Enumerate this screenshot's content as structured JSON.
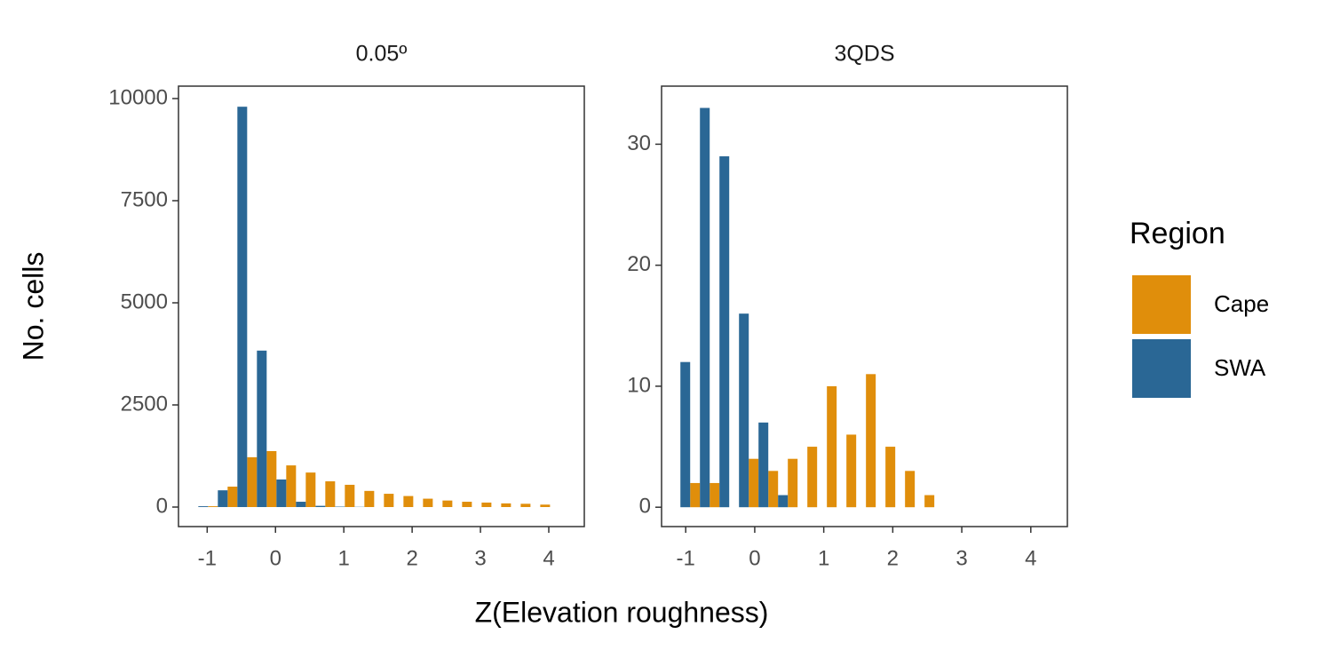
{
  "chart_data": [
    {
      "type": "histogram",
      "title": "0.05º",
      "xlabel": "Z(Elevation roughness)",
      "ylabel": "No. cells",
      "legend_title": "Region",
      "bins": [
        -1.13,
        -0.844,
        -0.558,
        -0.272,
        0.014,
        0.3,
        0.586,
        0.872,
        1.158,
        1.444,
        1.73,
        2.016,
        2.302,
        2.588,
        2.874,
        3.16,
        3.446,
        3.732,
        4.018
      ],
      "series": [
        {
          "name": "Cape",
          "color": "#e08e0b",
          "values": [
            20,
            500,
            1220,
            1370,
            1020,
            845,
            630,
            545,
            395,
            325,
            270,
            205,
            160,
            130,
            110,
            90,
            80,
            60
          ]
        },
        {
          "name": "SWA",
          "color": "#2a6795",
          "values": [
            20,
            410,
            9800,
            3830,
            675,
            130,
            30,
            10,
            5,
            0,
            0,
            0,
            0,
            0,
            0,
            0,
            0,
            0
          ]
        }
      ],
      "xlim": [
        -1.42,
        4.52
      ],
      "xticks": [
        -1,
        0,
        1,
        2,
        3,
        4
      ],
      "ylim": [
        -478,
        10304
      ],
      "yticks": [
        0,
        2500,
        5000,
        7500,
        10000
      ],
      "grid": false
    },
    {
      "type": "histogram",
      "title": "3QDS",
      "bins": [
        -1.077,
        -0.794,
        -0.511,
        -0.228,
        0.055,
        0.338,
        0.621,
        0.904,
        1.187,
        1.47,
        1.753,
        2.036,
        2.319,
        2.602
      ],
      "series": [
        {
          "color": "#e08e0b",
          "values": [
            2,
            2,
            0,
            4,
            3,
            4,
            5,
            10,
            6,
            11,
            5,
            3,
            1
          ]
        },
        {
          "color": "#2a6795",
          "values": [
            12,
            33,
            29,
            16,
            7,
            1,
            0,
            0,
            0,
            0,
            0,
            0,
            0
          ]
        }
      ],
      "xlim": [
        -1.35,
        4.53
      ],
      "xticks": [
        -1,
        0,
        1,
        2,
        3,
        4
      ],
      "ylim": [
        -1.6,
        34.8
      ],
      "yticks": [
        0,
        10,
        20,
        30
      ],
      "grid": false
    }
  ]
}
